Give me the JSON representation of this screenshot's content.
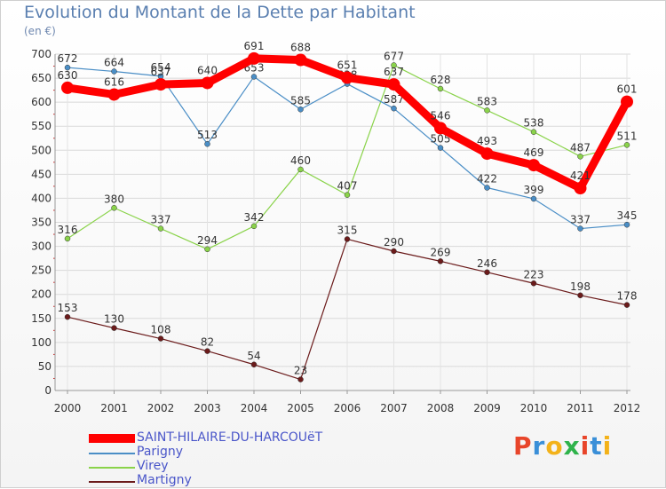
{
  "header": {
    "title": "Evolution du Montant de la Dette par Habitant",
    "unit": "(en €)"
  },
  "brand": {
    "letters": [
      "P",
      "r",
      "o",
      "x",
      "i",
      "t",
      "i"
    ],
    "colors": [
      "#e8452a",
      "#3a8fd8",
      "#f3b21a",
      "#2fb34b",
      "#e8452a",
      "#3a8fd8",
      "#f3b21a"
    ]
  },
  "chart_data": {
    "type": "line",
    "title": "Evolution du Montant de la Dette par Habitant",
    "ylabel": "(en €)",
    "xlabel": "",
    "ylim": [
      0,
      700
    ],
    "yticks": [
      0,
      50,
      100,
      150,
      200,
      250,
      300,
      350,
      400,
      450,
      500,
      550,
      600,
      650,
      700
    ],
    "grid": true,
    "legend_position": "bottom-left",
    "categories": [
      "2000",
      "2001",
      "2002",
      "2003",
      "2004",
      "2005",
      "2006",
      "2007",
      "2008",
      "2009",
      "2010",
      "2011",
      "2012"
    ],
    "series": [
      {
        "name": "Martigny",
        "color": "#6b1b1b",
        "values": [
          153,
          130,
          108,
          82,
          54,
          23,
          315,
          290,
          269,
          246,
          223,
          198,
          178
        ]
      },
      {
        "name": "Virey",
        "color": "#8ad34a",
        "values": [
          316,
          380,
          337,
          294,
          342,
          460,
          407,
          677,
          628,
          583,
          538,
          487,
          511
        ]
      },
      {
        "name": "Parigny",
        "color": "#4a8ec6",
        "values": [
          672,
          664,
          654,
          513,
          653,
          585,
          638,
          587,
          505,
          422,
          399,
          337,
          345
        ]
      },
      {
        "name": "SAINT-HILAIRE-DU-HARCOUëT",
        "color": "#ff0000",
        "values": [
          630,
          616,
          637,
          640,
          691,
          688,
          651,
          637,
          546,
          493,
          469,
          421,
          601
        ]
      }
    ]
  }
}
